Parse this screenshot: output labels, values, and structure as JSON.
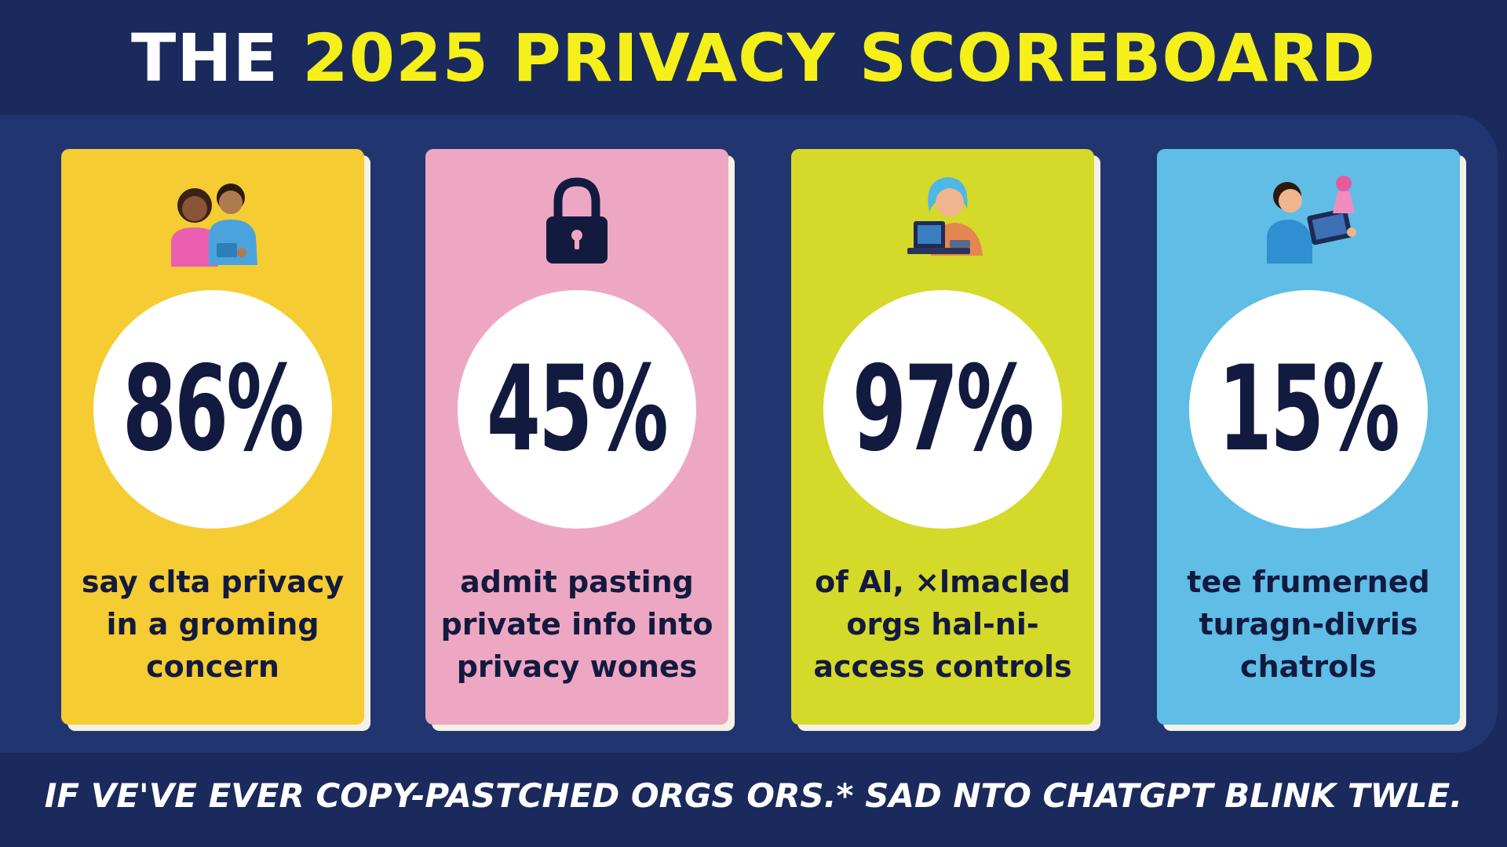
{
  "title": {
    "prefix": "THE ",
    "highlight": "2025 PRIVACY SCOREBOARD"
  },
  "colors": {
    "background": "#1b2a5c",
    "panel": "#213570",
    "accent": "#f5ef1a"
  },
  "cards": [
    {
      "icon": "two-people-icon",
      "color": "#f5cc32",
      "value": "86%",
      "caption": [
        "say clta privacy",
        "in a groming",
        "concern"
      ]
    },
    {
      "icon": "padlock-icon",
      "color": "#eea7c2",
      "value": "45%",
      "caption": [
        "admit pasting",
        "private info into",
        "privacy wones"
      ]
    },
    {
      "icon": "person-with-laptop-icon",
      "color": "#d4d92a",
      "value": "97%",
      "caption": [
        "of AI, ×lmacled",
        "orgs hal-ni-",
        "access controls"
      ]
    },
    {
      "icon": "person-with-tablet-icon",
      "color": "#5fbde6",
      "value": "15%",
      "caption": [
        "tee frumerned",
        "turagn-divris",
        "chatrols"
      ]
    }
  ],
  "footer": "IF VE'VE EVER COPY-PASTCHED ORGS ORS.* SAD NTO CHATGPT BLINK TWLE."
}
